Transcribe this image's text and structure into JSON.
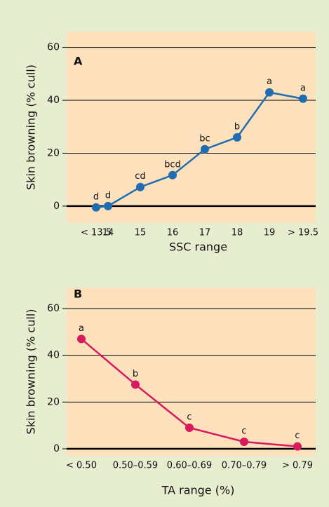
{
  "chart_data": [
    {
      "type": "line",
      "panel": "A",
      "xlabel": "SSC range",
      "ylabel": "Skin browning (% cull)",
      "categories": [
        "< 13.5",
        "14",
        "15",
        "16",
        "17",
        "18",
        "19",
        "> 19.5"
      ],
      "values": [
        -0.5,
        0,
        7.2,
        11.7,
        21.5,
        26,
        43,
        40.6
      ],
      "value_labels": [
        "d",
        "d",
        "cd",
        "bcd",
        "bc",
        "b",
        "a",
        "a"
      ],
      "color": "#1f6cb0",
      "ylim": [
        -6.4,
        66
      ],
      "yticks": [
        0,
        20,
        40,
        60
      ],
      "grid": true
    },
    {
      "type": "line",
      "panel": "B",
      "xlabel": "TA range (%)",
      "ylabel": "Skin browning (% cull)",
      "categories": [
        "< 0.50",
        "0.50–0.59",
        "0.60–0.69",
        "0.70–0.79",
        "> 0.79"
      ],
      "values": [
        47,
        27.5,
        9,
        3,
        1
      ],
      "value_labels": [
        "a",
        "b",
        "c",
        "c",
        "c"
      ],
      "color": "#d8195e",
      "ylim": [
        -3,
        69
      ],
      "yticks": [
        0,
        20,
        40,
        60
      ],
      "grid": true
    }
  ]
}
